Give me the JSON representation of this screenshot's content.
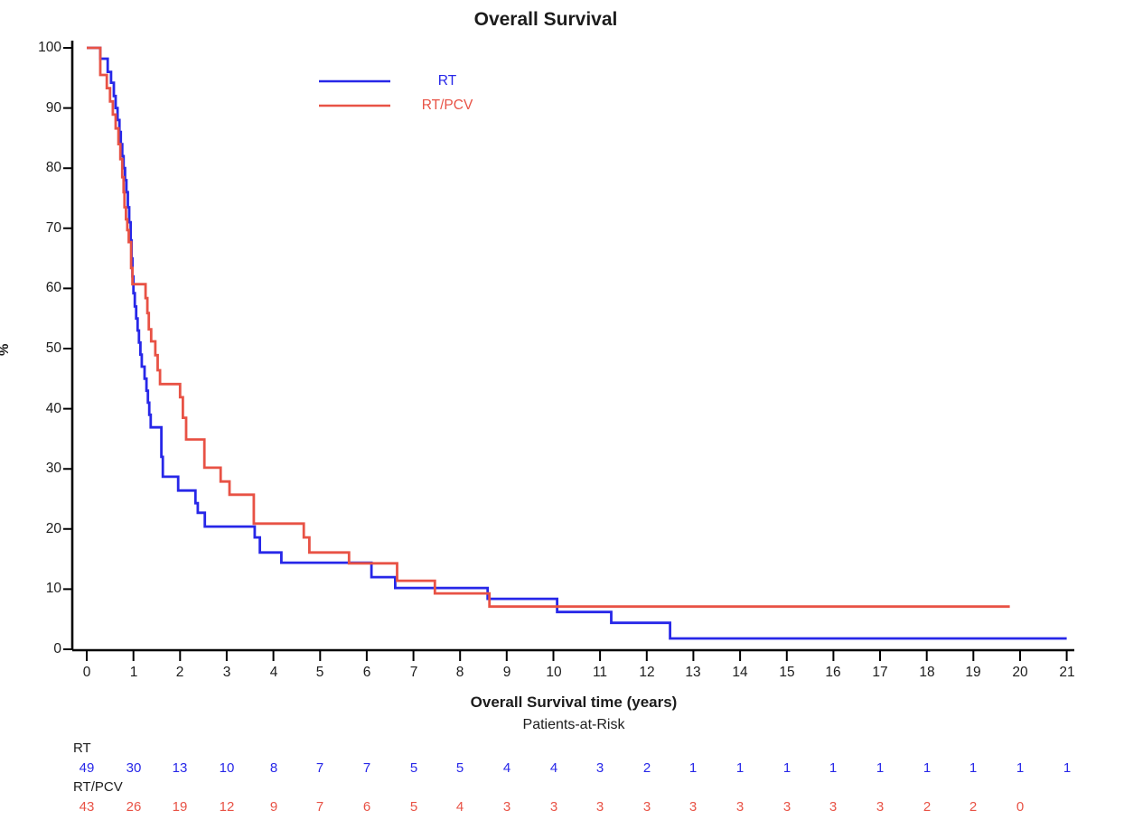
{
  "chart_data": {
    "type": "line",
    "subtype": "kaplan-meier-step",
    "title": "Overall Survival",
    "xlabel": "Overall Survival time (years)",
    "ylabel": "%",
    "xlim": [
      0,
      21
    ],
    "ylim": [
      0,
      100
    ],
    "grid": false,
    "axis_color": "#000000",
    "xticks": [
      0,
      1,
      2,
      3,
      4,
      5,
      6,
      7,
      8,
      9,
      10,
      11,
      12,
      13,
      14,
      15,
      16,
      17,
      18,
      19,
      20,
      21
    ],
    "yticks": [
      0,
      10,
      20,
      30,
      40,
      50,
      60,
      70,
      80,
      90,
      100
    ],
    "legend": {
      "position": "top-left-inside",
      "items": [
        {
          "id": "rt",
          "label": "RT",
          "color": "#2727e8"
        },
        {
          "id": "rt-pcv",
          "label": "RT/PCV",
          "color": "#e85245"
        }
      ]
    },
    "series": [
      {
        "id": "rt",
        "name": "RT",
        "color": "#2727e8",
        "points": [
          [
            0,
            100
          ],
          [
            0.29,
            98.2
          ],
          [
            0.45,
            96
          ],
          [
            0.52,
            94.2
          ],
          [
            0.58,
            92
          ],
          [
            0.62,
            90
          ],
          [
            0.66,
            88
          ],
          [
            0.7,
            86
          ],
          [
            0.73,
            84
          ],
          [
            0.76,
            82
          ],
          [
            0.79,
            80
          ],
          [
            0.82,
            78
          ],
          [
            0.85,
            76
          ],
          [
            0.88,
            73.5
          ],
          [
            0.91,
            71
          ],
          [
            0.94,
            68
          ],
          [
            0.96,
            65
          ],
          [
            0.98,
            62
          ],
          [
            1.0,
            59.2
          ],
          [
            1.03,
            57
          ],
          [
            1.06,
            55
          ],
          [
            1.09,
            53
          ],
          [
            1.12,
            51
          ],
          [
            1.15,
            49
          ],
          [
            1.18,
            47
          ],
          [
            1.24,
            45
          ],
          [
            1.28,
            43
          ],
          [
            1.31,
            41
          ],
          [
            1.34,
            39
          ],
          [
            1.37,
            36.9
          ],
          [
            1.6,
            32
          ],
          [
            1.63,
            28.7
          ],
          [
            1.96,
            26.4
          ],
          [
            2.33,
            24.3
          ],
          [
            2.38,
            22.7
          ],
          [
            2.53,
            20.4
          ],
          [
            3.6,
            18.6
          ],
          [
            3.71,
            16.1
          ],
          [
            4.17,
            14.4
          ],
          [
            6.1,
            12.0
          ],
          [
            6.61,
            10.2
          ],
          [
            8.59,
            8.4
          ],
          [
            10.08,
            6.2
          ],
          [
            11.24,
            4.4
          ],
          [
            12.5,
            1.8
          ],
          [
            21.0,
            1.8
          ]
        ]
      },
      {
        "id": "rt-pcv",
        "name": "RT/PCV",
        "color": "#e85245",
        "points": [
          [
            0,
            100
          ],
          [
            0.29,
            95.5
          ],
          [
            0.43,
            93.3
          ],
          [
            0.5,
            91.1
          ],
          [
            0.56,
            88.9
          ],
          [
            0.62,
            86.6
          ],
          [
            0.68,
            84
          ],
          [
            0.72,
            81.5
          ],
          [
            0.76,
            78.5
          ],
          [
            0.79,
            76
          ],
          [
            0.81,
            73.5
          ],
          [
            0.84,
            71.5
          ],
          [
            0.87,
            69.7
          ],
          [
            0.9,
            67.7
          ],
          [
            0.95,
            63.4
          ],
          [
            0.98,
            60.7
          ],
          [
            1.26,
            58.4
          ],
          [
            1.3,
            55.9
          ],
          [
            1.33,
            53.2
          ],
          [
            1.38,
            51.2
          ],
          [
            1.47,
            48.9
          ],
          [
            1.52,
            46.4
          ],
          [
            1.57,
            44.1
          ],
          [
            2.0,
            41.9
          ],
          [
            2.06,
            38.5
          ],
          [
            2.13,
            34.9
          ],
          [
            2.52,
            30.2
          ],
          [
            2.87,
            27.9
          ],
          [
            3.06,
            25.7
          ],
          [
            3.58,
            20.9
          ],
          [
            4.65,
            18.6
          ],
          [
            4.77,
            16.1
          ],
          [
            5.62,
            14.3
          ],
          [
            6.65,
            11.4
          ],
          [
            7.46,
            9.3
          ],
          [
            8.63,
            7.1
          ],
          [
            19.78,
            7.1
          ]
        ]
      }
    ],
    "at_risk": {
      "heading": "Patients-at-Risk",
      "rows": [
        {
          "id": "rt",
          "label": "RT",
          "color": "#2727e8",
          "values": [
            49,
            30,
            13,
            10,
            8,
            7,
            7,
            5,
            5,
            4,
            4,
            3,
            2,
            1,
            1,
            1,
            1,
            1,
            1,
            1,
            1,
            1
          ]
        },
        {
          "id": "rt-pcv",
          "label": "RT/PCV",
          "color": "#e85245",
          "values": [
            43,
            26,
            19,
            12,
            9,
            7,
            6,
            5,
            4,
            3,
            3,
            3,
            3,
            3,
            3,
            3,
            3,
            3,
            2,
            2,
            0
          ]
        }
      ]
    }
  }
}
